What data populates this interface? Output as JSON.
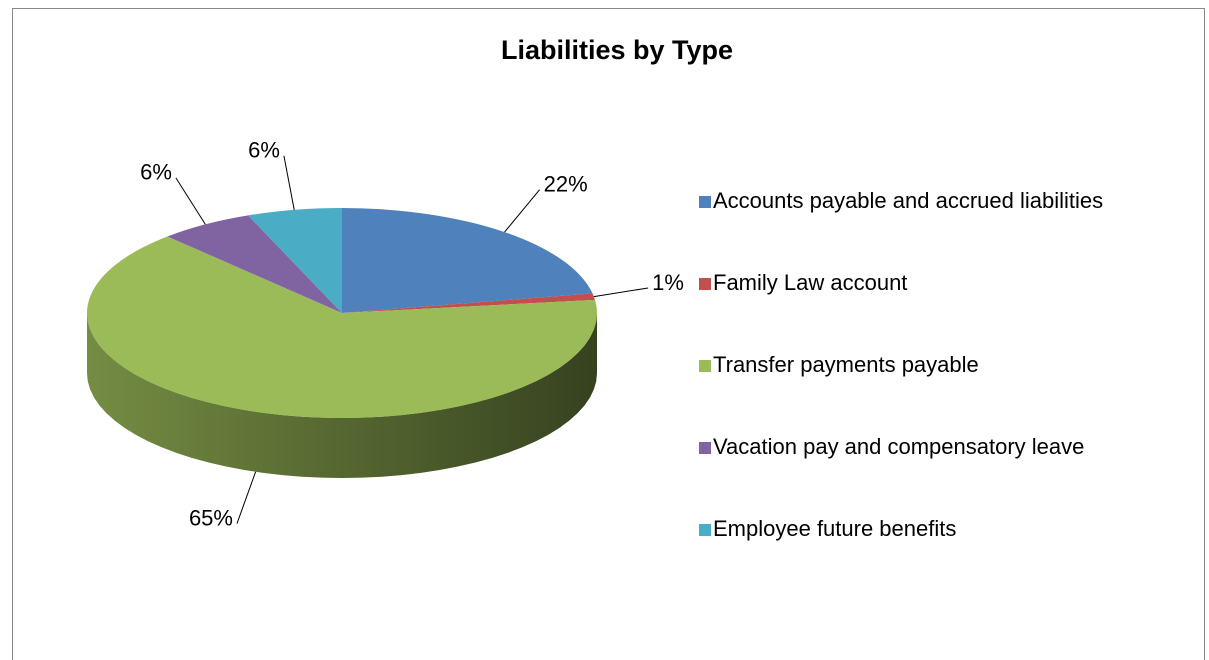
{
  "chart_data": {
    "type": "pie",
    "title": "Liabilities by Type",
    "categories": [
      "Accounts payable and accrued liabilities",
      "Family Law account",
      "Transfer payments payable",
      "Vacation pay and compensatory leave",
      "Employee future benefits"
    ],
    "values": [
      22,
      1,
      65,
      6,
      6
    ],
    "value_labels": [
      "22%",
      "1%",
      "65%",
      "6%",
      "6%"
    ],
    "colors": [
      "#4f81bd",
      "#c0504d",
      "#9bbb59",
      "#8064a2",
      "#4bacc6"
    ],
    "legend": "right"
  }
}
